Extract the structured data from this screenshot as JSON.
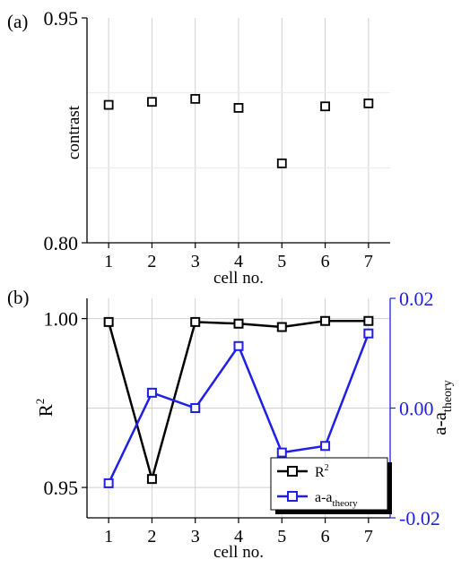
{
  "chart_data": [
    {
      "panel_label": "(a)",
      "type": "scatter",
      "xlabel": "cell no.",
      "ylabel": "contrast",
      "x": [
        1,
        2,
        3,
        4,
        5,
        6,
        7
      ],
      "y": [
        0.892,
        0.894,
        0.896,
        0.89,
        0.853,
        0.891,
        0.893
      ],
      "xlim": [
        0.5,
        7.5
      ],
      "ylim": [
        0.8,
        0.95
      ],
      "xticks": [
        "1",
        "2",
        "3",
        "4",
        "5",
        "6",
        "7"
      ],
      "yticks": [
        "0.80",
        "0.95"
      ],
      "grid": true,
      "marker": "open-square",
      "color": "#000000"
    },
    {
      "panel_label": "(b)",
      "type": "line",
      "xlabel": "cell no.",
      "ylabel_left": "R",
      "ylabel_left_sup": "2",
      "ylabel_right": "a-a",
      "ylabel_right_sub": "theory",
      "x": [
        1,
        2,
        3,
        4,
        5,
        6,
        7
      ],
      "xlim": [
        0.5,
        7.5
      ],
      "xticks": [
        "1",
        "2",
        "3",
        "4",
        "5",
        "6",
        "7"
      ],
      "ylim_left": [
        0.941,
        1.006
      ],
      "ylim_right": [
        -0.02,
        0.02
      ],
      "yticks_left": [
        "0.95",
        "1.00"
      ],
      "yticks_right": [
        "-0.02",
        "0.00",
        "0.02"
      ],
      "grid": true,
      "legend_placement": "bottom-right",
      "series": [
        {
          "name": "R",
          "name_sup": "2",
          "axis": "left",
          "color": "#000000",
          "values": [
            0.999,
            0.9525,
            0.999,
            0.9985,
            0.9975,
            0.9993,
            0.9993
          ]
        },
        {
          "name": "a-a",
          "name_sub": "theory",
          "axis": "right",
          "color": "#1f1fe6",
          "values": [
            -0.0137,
            0.0028,
            0.0,
            0.0113,
            -0.0081,
            -0.0069,
            0.0136
          ]
        }
      ]
    }
  ]
}
